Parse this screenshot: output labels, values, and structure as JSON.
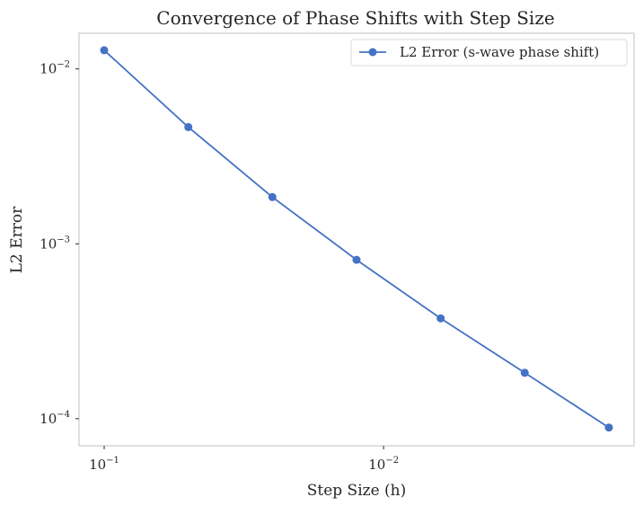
{
  "chart_data": {
    "type": "line",
    "title": "Convergence of Phase Shifts with Step Size",
    "xlabel": "Step Size (h)",
    "ylabel": "L2 Error",
    "x_scale": "log",
    "y_scale": "log",
    "x_inverted": true,
    "xlim": [
      0.1,
      0.0015625
    ],
    "ylim": [
      7e-05,
      0.016
    ],
    "grid": false,
    "legend_position": "top-right",
    "x_ticks": [
      {
        "value": 0.1,
        "base": "10",
        "exp": "−1"
      },
      {
        "value": 0.01,
        "base": "10",
        "exp": "−2"
      }
    ],
    "y_ticks": [
      {
        "value": 0.01,
        "base": "10",
        "exp": "−2"
      },
      {
        "value": 0.001,
        "base": "10",
        "exp": "−3"
      },
      {
        "value": 0.0001,
        "base": "10",
        "exp": "−4"
      }
    ],
    "series": [
      {
        "name": "L2 Error (s-wave phase shift)",
        "color": "#4472c4",
        "marker": "circle",
        "x": [
          0.1,
          0.05,
          0.025,
          0.0125,
          0.00625,
          0.003125,
          0.0015625
        ],
        "y": [
          0.0128,
          0.00465,
          0.00185,
          0.00081,
          0.000375,
          0.000183,
          8.9e-05
        ]
      }
    ]
  }
}
